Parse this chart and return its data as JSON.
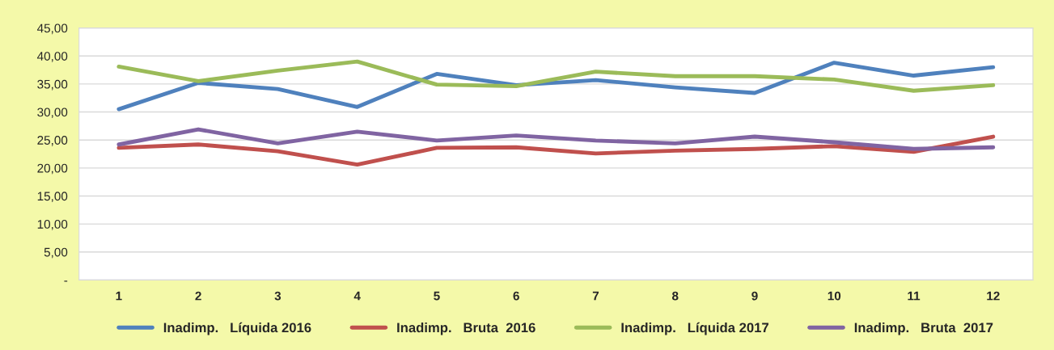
{
  "chart_data": {
    "type": "line",
    "categories": [
      "1",
      "2",
      "3",
      "4",
      "5",
      "6",
      "7",
      "8",
      "9",
      "10",
      "11",
      "12"
    ],
    "series": [
      {
        "name": "Inadimp.   Líquida 2016",
        "color": "#4f81bd",
        "values": [
          30.5,
          35.2,
          34.1,
          30.9,
          36.8,
          34.8,
          35.7,
          34.4,
          33.4,
          38.8,
          36.5,
          38.0
        ]
      },
      {
        "name": "Inadimp.   Bruta  2016",
        "color": "#c0504d",
        "values": [
          23.6,
          24.2,
          23.0,
          20.6,
          23.6,
          23.7,
          22.6,
          23.1,
          23.4,
          23.9,
          22.9,
          25.6
        ]
      },
      {
        "name": "Inadimp.   Líquida 2017",
        "color": "#9bbb59",
        "values": [
          38.1,
          35.5,
          37.4,
          39.0,
          34.9,
          34.6,
          37.2,
          36.4,
          36.4,
          35.8,
          33.8,
          34.8
        ]
      },
      {
        "name": "Inadimp.   Bruta  2017",
        "color": "#8064a2",
        "values": [
          24.2,
          26.9,
          24.4,
          26.5,
          24.9,
          25.8,
          24.9,
          24.4,
          25.6,
          24.6,
          23.4,
          23.7
        ]
      }
    ],
    "ylim": [
      0,
      45
    ],
    "yticks": [
      {
        "value": 0,
        "label": "-"
      },
      {
        "value": 5,
        "label": "5,00"
      },
      {
        "value": 10,
        "label": "10,00"
      },
      {
        "value": 15,
        "label": "15,00"
      },
      {
        "value": 20,
        "label": "20,00"
      },
      {
        "value": 25,
        "label": "25,00"
      },
      {
        "value": 30,
        "label": "30,00"
      },
      {
        "value": 35,
        "label": "35,00"
      },
      {
        "value": 40,
        "label": "40,00"
      },
      {
        "value": 45,
        "label": "45,00"
      }
    ],
    "grid": "y",
    "legend": "bottom",
    "marker": "none",
    "line_style": "solid"
  }
}
